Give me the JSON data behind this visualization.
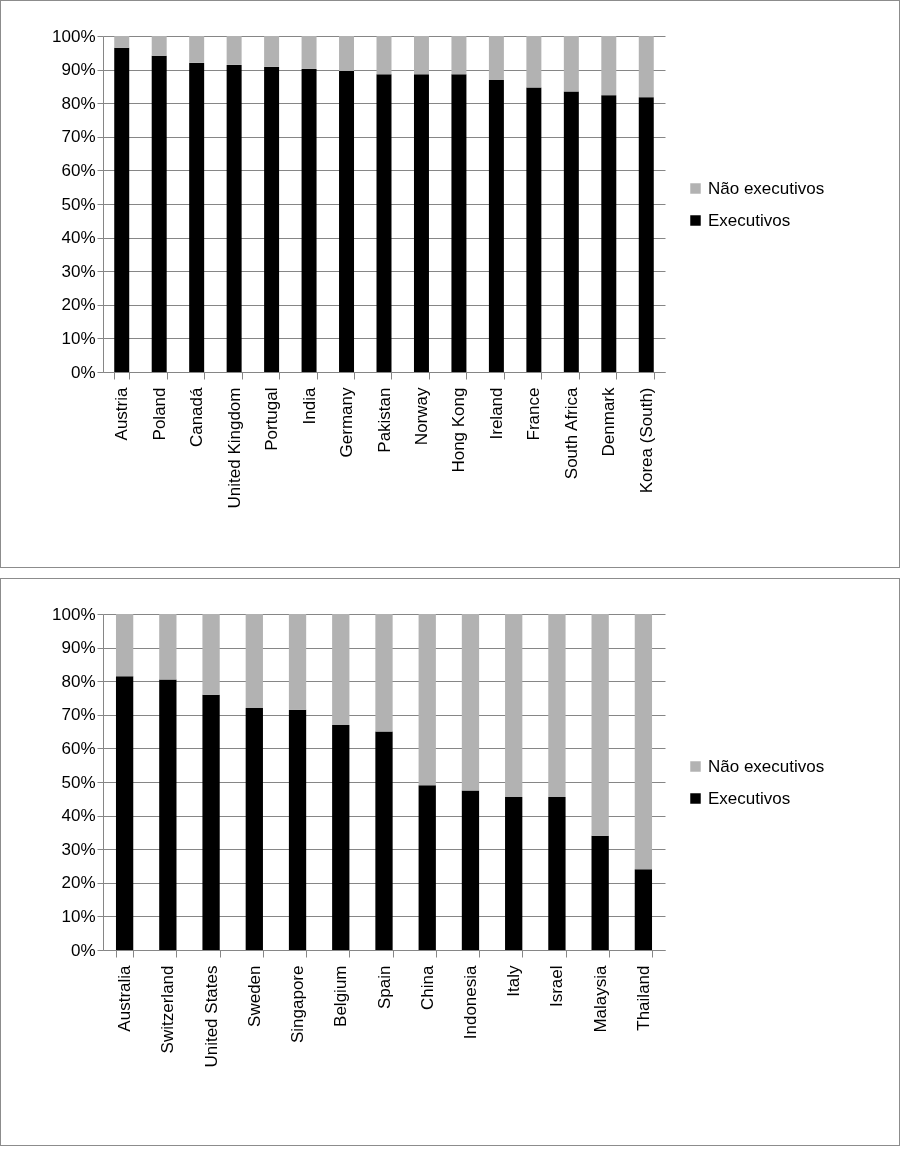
{
  "chart_data": [
    {
      "type": "bar",
      "stacked": true,
      "grid": "y",
      "legend": "right",
      "categories": [
        "Austria",
        "Poland",
        "Canadá",
        "United Kingdom",
        "Portugal",
        "India",
        "Germany",
        "Pakistan",
        "Norway",
        "Hong Kong",
        "Ireland",
        "France",
        "South Africa",
        "Denmark",
        "Korea (South)"
      ],
      "series": [
        {
          "name": "Executivos",
          "color": "#000000",
          "values": [
            96.5,
            94.1,
            92.0,
            91.4,
            90.8,
            90.2,
            89.6,
            88.6,
            88.6,
            88.6,
            86.9,
            84.7,
            83.5,
            82.4,
            81.8
          ]
        },
        {
          "name": "Não executivos",
          "color": "#b2b2b2",
          "values": [
            3.5,
            5.9,
            8.0,
            8.6,
            9.2,
            9.8,
            10.4,
            11.4,
            11.4,
            11.4,
            13.1,
            15.3,
            16.5,
            17.6,
            18.2
          ]
        }
      ],
      "ylim": [
        0,
        100
      ],
      "yticks": [
        {
          "value": 0,
          "label": "0%"
        },
        {
          "value": 10,
          "label": "10%"
        },
        {
          "value": 20,
          "label": "20%"
        },
        {
          "value": 30,
          "label": "30%"
        },
        {
          "value": 40,
          "label": "40%"
        },
        {
          "value": 50,
          "label": "50%"
        },
        {
          "value": 60,
          "label": "60%"
        },
        {
          "value": 70,
          "label": "70%"
        },
        {
          "value": 80,
          "label": "80%"
        },
        {
          "value": 90,
          "label": "90%"
        },
        {
          "value": 100,
          "label": "100%"
        }
      ]
    },
    {
      "type": "bar",
      "stacked": true,
      "grid": "y",
      "legend": "right",
      "categories": [
        "Australia",
        "Switzerland",
        "United States",
        "Sweden",
        "Singapore",
        "Belgium",
        "Spain",
        "China",
        "Indonesia",
        "Italy",
        "Israel",
        "Malaysia",
        "Thailand"
      ],
      "series": [
        {
          "name": "Executivos",
          "color": "#000000",
          "values": [
            81.5,
            80.5,
            76,
            72,
            71.5,
            67,
            65,
            49,
            47.5,
            45.5,
            45.5,
            34,
            24
          ]
        },
        {
          "name": "Não executivos",
          "color": "#b2b2b2",
          "values": [
            18.5,
            19.5,
            24,
            28,
            28.5,
            33,
            35,
            51,
            52.5,
            54.5,
            54.5,
            66,
            76
          ]
        }
      ],
      "ylim": [
        0,
        100
      ],
      "yticks": [
        {
          "value": 0,
          "label": "0%"
        },
        {
          "value": 10,
          "label": "10%"
        },
        {
          "value": 20,
          "label": "20%"
        },
        {
          "value": 30,
          "label": "30%"
        },
        {
          "value": 40,
          "label": "40%"
        },
        {
          "value": 50,
          "label": "50%"
        },
        {
          "value": 60,
          "label": "60%"
        },
        {
          "value": 70,
          "label": "70%"
        },
        {
          "value": 80,
          "label": "80%"
        },
        {
          "value": 90,
          "label": "90%"
        },
        {
          "value": 100,
          "label": "100%"
        }
      ]
    }
  ]
}
